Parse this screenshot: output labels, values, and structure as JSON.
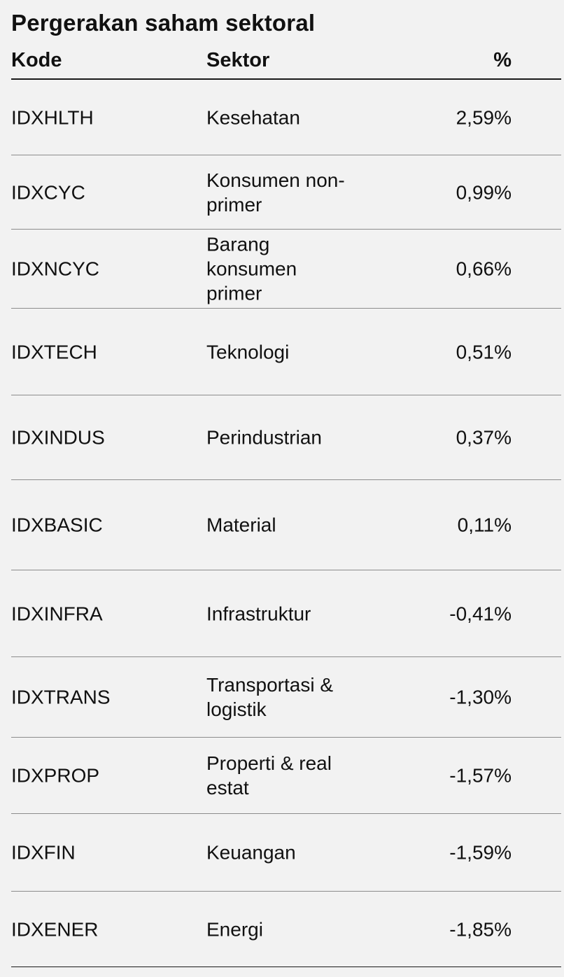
{
  "title": "Pergerakan saham sektoral",
  "columns": {
    "code": "Kode",
    "sector": "Sektor",
    "pct": "%"
  },
  "rows": [
    {
      "code": "IDXHLTH",
      "sector": "Kesehatan",
      "pct": "2,59%"
    },
    {
      "code": "IDXCYC",
      "sector": "Konsumen non-primer",
      "pct": "0,99%"
    },
    {
      "code": "IDXNCYC",
      "sector": "Barang konsumen primer",
      "pct": "0,66%"
    },
    {
      "code": "IDXTECH",
      "sector": "Teknologi",
      "pct": "0,51%"
    },
    {
      "code": "IDXINDUS",
      "sector": "Perindustrian",
      "pct": "0,37%"
    },
    {
      "code": "IDXBASIC",
      "sector": "Material",
      "pct": "0,11%"
    },
    {
      "code": "IDXINFRA",
      "sector": "Infrastruktur",
      "pct": "-0,41%"
    },
    {
      "code": "IDXTRANS",
      "sector": "Transportasi & logistik",
      "pct": "-1,30%"
    },
    {
      "code": "IDXPROP",
      "sector": "Properti & real estat",
      "pct": "-1,57%"
    },
    {
      "code": "IDXFIN",
      "sector": "Keuangan",
      "pct": "-1,59%"
    },
    {
      "code": "IDXENER",
      "sector": "Energi",
      "pct": "-1,85%"
    }
  ],
  "chart_data": {
    "type": "table",
    "title": "Pergerakan saham sektoral",
    "columns": [
      "Kode",
      "Sektor",
      "%"
    ],
    "rows": [
      [
        "IDXHLTH",
        "Kesehatan",
        2.59
      ],
      [
        "IDXCYC",
        "Konsumen non-primer",
        0.99
      ],
      [
        "IDXNCYC",
        "Barang konsumen primer",
        0.66
      ],
      [
        "IDXTECH",
        "Teknologi",
        0.51
      ],
      [
        "IDXINDUS",
        "Perindustrian",
        0.37
      ],
      [
        "IDXBASIC",
        "Material",
        0.11
      ],
      [
        "IDXINFRA",
        "Infrastruktur",
        -0.41
      ],
      [
        "IDXTRANS",
        "Transportasi & logistik",
        -1.3
      ],
      [
        "IDXPROP",
        "Properti & real estat",
        -1.57
      ],
      [
        "IDXFIN",
        "Keuangan",
        -1.59
      ],
      [
        "IDXENER",
        "Energi",
        -1.85
      ]
    ]
  }
}
